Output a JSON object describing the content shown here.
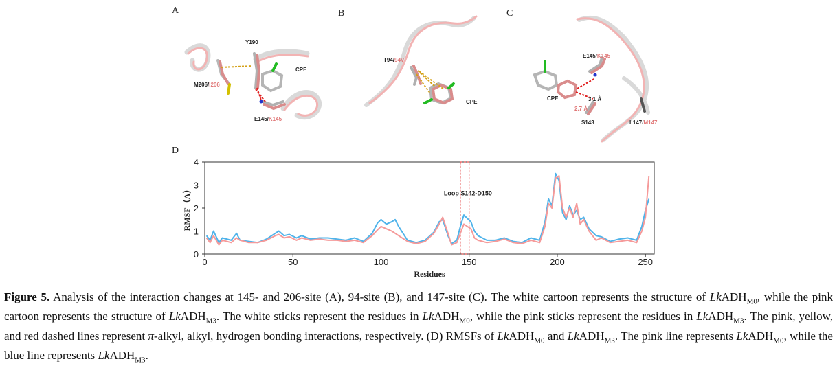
{
  "panels": {
    "a": {
      "label": "A",
      "labels": {
        "y190": "Y190",
        "cpe": "CPE",
        "m206_white": "M206/",
        "m206_pink": "I206",
        "e145_white": "E145/",
        "e145_pink": "K145"
      }
    },
    "b": {
      "label": "B",
      "labels": {
        "t94_white": "T94/",
        "t94_pink": "94V",
        "cpe": "CPE"
      }
    },
    "c": {
      "label": "C",
      "labels": {
        "e145_white": "E145/",
        "e145_pink": "K145",
        "cpe": "CPE",
        "dist1": "3.1 Å",
        "dist2": "2.7 Å",
        "s143": "S143",
        "l147_white": "L147/",
        "l147_pink": "M147"
      }
    },
    "d": {
      "label": "D"
    }
  },
  "chart_data": {
    "type": "line",
    "xlabel": "Residues",
    "ylabel": "RMSF（A）",
    "xlim": [
      0,
      255
    ],
    "ylim": [
      0,
      4
    ],
    "xticks": [
      0,
      50,
      100,
      150,
      200,
      250
    ],
    "yticks": [
      0,
      1,
      2,
      3,
      4
    ],
    "grid": false,
    "annotation": {
      "text": "Loop S142-D150",
      "x_range": [
        145,
        150
      ],
      "style": "red-dashed-box"
    },
    "colors": {
      "m0": "#f59a9a",
      "m3": "#4fb3ea"
    },
    "series": [
      {
        "key": "m0",
        "x": [
          1,
          3,
          5,
          8,
          10,
          15,
          18,
          20,
          25,
          30,
          35,
          40,
          42,
          45,
          48,
          52,
          55,
          60,
          65,
          70,
          75,
          80,
          85,
          90,
          95,
          98,
          100,
          103,
          106,
          108,
          110,
          115,
          120,
          125,
          130,
          133,
          135,
          138,
          140,
          143,
          145,
          147,
          149,
          151,
          153,
          155,
          160,
          165,
          170,
          175,
          180,
          185,
          190,
          193,
          195,
          197,
          199,
          201,
          203,
          205,
          207,
          209,
          211,
          213,
          215,
          218,
          222,
          225,
          230,
          235,
          240,
          245,
          248,
          250,
          252
        ],
        "values": [
          0.7,
          0.5,
          0.8,
          0.4,
          0.6,
          0.5,
          0.7,
          0.6,
          0.5,
          0.5,
          0.6,
          0.8,
          0.85,
          0.7,
          0.75,
          0.6,
          0.7,
          0.6,
          0.65,
          0.6,
          0.6,
          0.55,
          0.6,
          0.5,
          0.8,
          1.05,
          1.2,
          1.1,
          1.0,
          0.9,
          0.8,
          0.55,
          0.45,
          0.55,
          0.9,
          1.3,
          1.6,
          0.9,
          0.4,
          0.5,
          0.9,
          1.3,
          1.2,
          1.1,
          0.7,
          0.6,
          0.5,
          0.55,
          0.65,
          0.5,
          0.45,
          0.6,
          0.5,
          1.2,
          2.2,
          2.0,
          3.3,
          3.4,
          2.0,
          1.6,
          2.0,
          1.6,
          2.2,
          1.3,
          1.5,
          1.0,
          0.6,
          0.7,
          0.5,
          0.55,
          0.6,
          0.5,
          1.0,
          1.6,
          3.4
        ]
      },
      {
        "key": "m3",
        "x": [
          1,
          3,
          5,
          8,
          10,
          15,
          18,
          20,
          25,
          30,
          35,
          40,
          42,
          45,
          48,
          52,
          55,
          60,
          65,
          70,
          75,
          80,
          85,
          90,
          95,
          98,
          100,
          103,
          106,
          108,
          110,
          115,
          120,
          125,
          130,
          133,
          135,
          138,
          140,
          143,
          145,
          147,
          149,
          151,
          153,
          155,
          160,
          165,
          170,
          175,
          180,
          185,
          190,
          193,
          195,
          197,
          199,
          201,
          203,
          205,
          207,
          209,
          211,
          213,
          215,
          218,
          222,
          225,
          230,
          235,
          240,
          245,
          248,
          250,
          252
        ],
        "values": [
          0.8,
          0.6,
          1.0,
          0.5,
          0.7,
          0.6,
          0.9,
          0.6,
          0.55,
          0.5,
          0.65,
          0.9,
          1.0,
          0.8,
          0.85,
          0.7,
          0.8,
          0.65,
          0.7,
          0.7,
          0.65,
          0.6,
          0.7,
          0.55,
          0.9,
          1.35,
          1.5,
          1.3,
          1.4,
          1.5,
          1.2,
          0.6,
          0.5,
          0.6,
          0.95,
          1.4,
          1.5,
          0.8,
          0.45,
          0.6,
          1.2,
          1.7,
          1.55,
          1.4,
          1.0,
          0.8,
          0.6,
          0.6,
          0.7,
          0.55,
          0.5,
          0.7,
          0.6,
          1.4,
          2.4,
          2.1,
          3.5,
          3.2,
          1.8,
          1.5,
          2.1,
          1.7,
          1.9,
          1.5,
          1.6,
          1.1,
          0.8,
          0.75,
          0.55,
          0.65,
          0.7,
          0.6,
          1.2,
          1.9,
          2.4
        ]
      }
    ]
  },
  "caption": {
    "fig_label": "Figure 5.",
    "t1": " Analysis of the interaction changes at 145- and 206-site (A), 94-site (B), and 147-site (C). The white cartoon represents the structure of ",
    "org": "Lk",
    "adh": "ADH",
    "m0": "M0",
    "m3": "M3",
    "t2": ", while the pink cartoon represents the structure of ",
    "t3": ". The white sticks represent the residues in ",
    "t4": ", while the pink sticks represent the residues in ",
    "t5": ". The pink, yellow, and red dashed lines represent ",
    "pi": "π",
    "t6": "-alkyl, alkyl, hydrogen bonding interactions, respectively. (D) RMSFs of ",
    "t7": " and ",
    "t8": ". The pink line represents ",
    "t9": ", while the blue line represents ",
    "t10": "."
  }
}
